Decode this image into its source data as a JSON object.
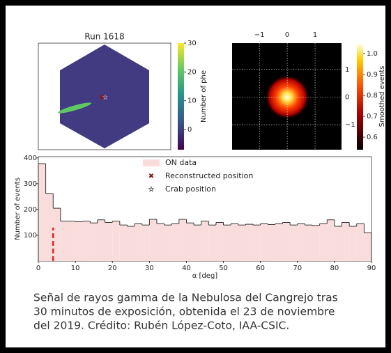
{
  "chart_data": [
    {
      "type": "image",
      "title": "Run 1618",
      "colorbar_label": "Number of phe",
      "colormap": "viridis",
      "clim": [
        -7,
        30
      ],
      "cticks": [
        0,
        10,
        20,
        30
      ]
    },
    {
      "type": "image",
      "colorbar_label": "Smoothed events",
      "colormap": "hot",
      "grid": true,
      "xlim": [
        -1.98,
        1.95
      ],
      "xticks": [
        {
          "value": -1,
          "label": "−1"
        },
        0,
        1
      ],
      "ylim": [
        -1.9,
        1.95
      ],
      "yticks": [
        {
          "value": -1,
          "label": "−1"
        },
        0,
        1
      ],
      "clim": [
        0.54,
        1.05
      ],
      "cticks": [
        0.6,
        0.7,
        0.8,
        0.9,
        {
          "value": 1,
          "label": "1.0"
        }
      ]
    },
    {
      "type": "histogram",
      "xlabel": "α [deg]",
      "ylabel": "Number of events",
      "legend": "upper center",
      "bins": [
        0,
        2,
        4,
        6,
        8,
        10,
        12,
        14,
        16,
        18,
        20,
        22,
        24,
        26,
        28,
        30,
        32,
        34,
        36,
        38,
        40,
        42,
        44,
        46,
        48,
        50,
        52,
        54,
        56,
        58,
        60,
        62,
        64,
        66,
        68,
        70,
        72,
        74,
        76,
        78,
        80,
        82,
        84,
        86,
        88,
        90
      ],
      "series": [
        {
          "name": "ON data",
          "color": "#f9dcdc",
          "values": [
            378,
            262,
            205,
            155,
            155,
            153,
            155,
            148,
            160,
            150,
            155,
            140,
            135,
            145,
            140,
            162,
            145,
            140,
            145,
            162,
            148,
            140,
            155,
            140,
            150,
            140,
            145,
            140,
            143,
            140,
            145,
            142,
            145,
            150,
            140,
            145,
            140,
            138,
            145,
            160,
            135,
            150,
            135,
            145,
            110
          ]
        }
      ],
      "markers": [
        {
          "name": "Reconstructed position",
          "color": "#8b1a1a"
        },
        {
          "name": "Crab position",
          "color": "#ffffff"
        }
      ],
      "threshold": {
        "x": 4,
        "height": 130,
        "color": "#e02828"
      },
      "xlim": [
        0,
        90
      ],
      "xticks": [
        0,
        10,
        20,
        30,
        40,
        50,
        60,
        70,
        80,
        90
      ],
      "ylim": [
        0,
        405
      ],
      "yticks": [
        100,
        200,
        300,
        400
      ]
    }
  ],
  "caption": [
    "Señal de rayos gamma de la Nebulosa del Cangrejo tras",
    "30 minutos de exposición, obtenida el 23 de noviembre",
    "del 2019. Crédito: Rubén López-Coto, IAA-CSIC."
  ]
}
